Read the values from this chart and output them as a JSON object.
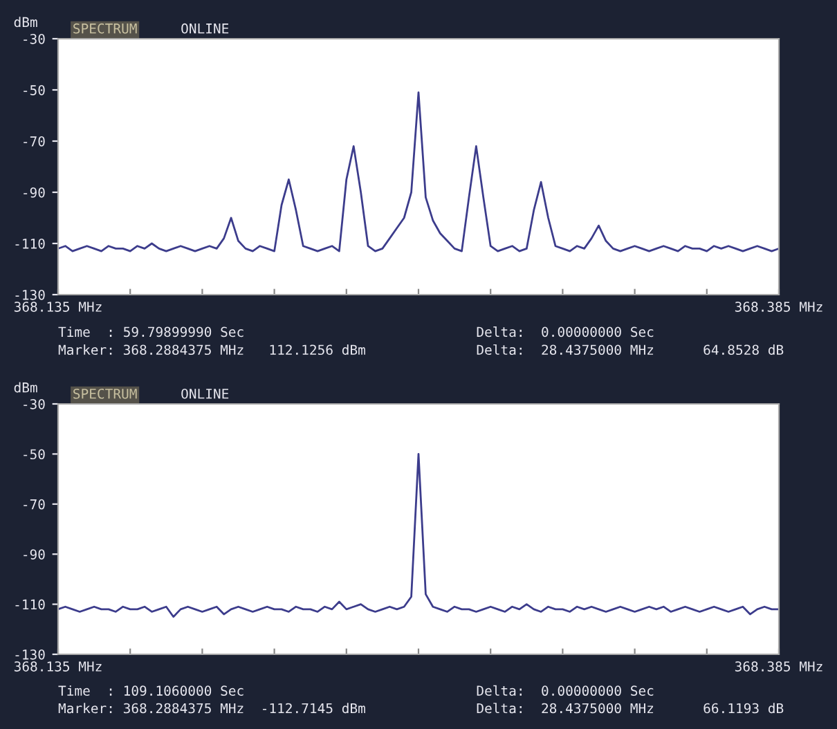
{
  "chart_data": [
    {
      "type": "line",
      "title": "SPECTRUM",
      "subtitle": "ONLINE",
      "ylabel": "dBm",
      "xlim": [
        368.135,
        368.385
      ],
      "ylim": [
        -130,
        -30
      ],
      "yticks": [
        -30,
        -50,
        -70,
        -90,
        -110,
        -130
      ],
      "xticks": [
        {
          "value": 368.135,
          "label": "368.135 MHz"
        },
        {
          "value": 368.16,
          "label": null
        },
        {
          "value": 368.185,
          "label": null
        },
        {
          "value": 368.21,
          "label": null
        },
        {
          "value": 368.235,
          "label": null
        },
        {
          "value": 368.26,
          "label": null
        },
        {
          "value": 368.285,
          "label": null
        },
        {
          "value": 368.31,
          "label": null
        },
        {
          "value": 368.335,
          "label": null
        },
        {
          "value": 368.36,
          "label": null
        },
        {
          "value": 368.385,
          "label": "368.385 MHz"
        }
      ],
      "grid": false,
      "annotations": [
        "Time  : 59.79899990 Sec",
        "Marker: 368.2884375 MHz   112.1256 dBm",
        "Delta:  0.00000000 Sec",
        "Delta:  28.4375000 MHz      64.8528 dB"
      ],
      "series": [
        {
          "color": "#3c3c8c",
          "x": [
            368.135,
            368.1375,
            368.14,
            368.1425,
            368.145,
            368.1475,
            368.15,
            368.1525,
            368.155,
            368.1575,
            368.16,
            368.1625,
            368.165,
            368.1675,
            368.17,
            368.1725,
            368.175,
            368.1775,
            368.18,
            368.1825,
            368.185,
            368.1875,
            368.19,
            368.1925,
            368.195,
            368.1975,
            368.2,
            368.2025,
            368.205,
            368.2075,
            368.21,
            368.2125,
            368.215,
            368.2175,
            368.22,
            368.2225,
            368.225,
            368.2275,
            368.23,
            368.2325,
            368.235,
            368.2375,
            368.24,
            368.2425,
            368.245,
            368.2475,
            368.25,
            368.2525,
            368.255,
            368.2575,
            368.26,
            368.2625,
            368.265,
            368.2675,
            368.27,
            368.2725,
            368.275,
            368.2775,
            368.28,
            368.2825,
            368.285,
            368.2875,
            368.29,
            368.2925,
            368.295,
            368.2975,
            368.3,
            368.3025,
            368.305,
            368.3075,
            368.31,
            368.3125,
            368.315,
            368.3175,
            368.32,
            368.3225,
            368.325,
            368.3275,
            368.33,
            368.3325,
            368.335,
            368.3375,
            368.34,
            368.3425,
            368.345,
            368.3475,
            368.35,
            368.3525,
            368.355,
            368.3575,
            368.36,
            368.3625,
            368.365,
            368.3675,
            368.37,
            368.3725,
            368.375,
            368.3775,
            368.38,
            368.3825,
            368.385
          ],
          "values": [
            -112,
            -111,
            -113,
            -112,
            -111,
            -112,
            -113,
            -111,
            -112,
            -112,
            -113,
            -111,
            -112,
            -110,
            -112,
            -113,
            -112,
            -111,
            -112,
            -113,
            -112,
            -111,
            -112,
            -108,
            -100,
            -109,
            -112,
            -113,
            -111,
            -112,
            -113,
            -95,
            -85,
            -97,
            -111,
            -112,
            -113,
            -112,
            -111,
            -113,
            -85,
            -72,
            -90,
            -111,
            -113,
            -112,
            -108,
            -104,
            -100,
            -90,
            -51,
            -92,
            -101,
            -106,
            -109,
            -112,
            -113,
            -92,
            -72,
            -92,
            -111,
            -113,
            -112,
            -111,
            -113,
            -112,
            -97,
            -86,
            -100,
            -111,
            -112,
            -113,
            -111,
            -112,
            -108,
            -103,
            -109,
            -112,
            -113,
            -112,
            -111,
            -112,
            -113,
            -112,
            -111,
            -112,
            -113,
            -111,
            -112,
            -112,
            -113,
            -111,
            -112,
            -111,
            -112,
            -113,
            -112,
            -111,
            -112,
            -113,
            -112
          ]
        }
      ]
    },
    {
      "type": "line",
      "title": "SPECTRUM",
      "subtitle": "ONLINE",
      "ylabel": "dBm",
      "xlim": [
        368.135,
        368.385
      ],
      "ylim": [
        -130,
        -30
      ],
      "yticks": [
        -30,
        -50,
        -70,
        -90,
        -110,
        -130
      ],
      "xticks": [
        {
          "value": 368.135,
          "label": "368.135 MHz"
        },
        {
          "value": 368.16,
          "label": null
        },
        {
          "value": 368.185,
          "label": null
        },
        {
          "value": 368.21,
          "label": null
        },
        {
          "value": 368.235,
          "label": null
        },
        {
          "value": 368.26,
          "label": null
        },
        {
          "value": 368.285,
          "label": null
        },
        {
          "value": 368.31,
          "label": null
        },
        {
          "value": 368.335,
          "label": null
        },
        {
          "value": 368.36,
          "label": null
        },
        {
          "value": 368.385,
          "label": "368.385 MHz"
        }
      ],
      "grid": false,
      "annotations": [
        "Time  : 109.1060000 Sec",
        "Marker: 368.2884375 MHz  -112.7145 dBm",
        "Delta:  0.00000000 Sec",
        "Delta:  28.4375000 MHz      66.1193 dB"
      ],
      "series": [
        {
          "color": "#3c3c8c",
          "x": [
            368.135,
            368.1375,
            368.14,
            368.1425,
            368.145,
            368.1475,
            368.15,
            368.1525,
            368.155,
            368.1575,
            368.16,
            368.1625,
            368.165,
            368.1675,
            368.17,
            368.1725,
            368.175,
            368.1775,
            368.18,
            368.1825,
            368.185,
            368.1875,
            368.19,
            368.1925,
            368.195,
            368.1975,
            368.2,
            368.2025,
            368.205,
            368.2075,
            368.21,
            368.2125,
            368.215,
            368.2175,
            368.22,
            368.2225,
            368.225,
            368.2275,
            368.23,
            368.2325,
            368.235,
            368.2375,
            368.24,
            368.2425,
            368.245,
            368.2475,
            368.25,
            368.2525,
            368.255,
            368.2575,
            368.26,
            368.2625,
            368.265,
            368.2675,
            368.27,
            368.2725,
            368.275,
            368.2775,
            368.28,
            368.2825,
            368.285,
            368.2875,
            368.29,
            368.2925,
            368.295,
            368.2975,
            368.3,
            368.3025,
            368.305,
            368.3075,
            368.31,
            368.3125,
            368.315,
            368.3175,
            368.32,
            368.3225,
            368.325,
            368.3275,
            368.33,
            368.3325,
            368.335,
            368.3375,
            368.34,
            368.3425,
            368.345,
            368.3475,
            368.35,
            368.3525,
            368.355,
            368.3575,
            368.36,
            368.3625,
            368.365,
            368.3675,
            368.37,
            368.3725,
            368.375,
            368.3775,
            368.38,
            368.3825,
            368.385
          ],
          "values": [
            -112,
            -111,
            -112,
            -113,
            -112,
            -111,
            -112,
            -112,
            -113,
            -111,
            -112,
            -112,
            -111,
            -113,
            -112,
            -111,
            -115,
            -112,
            -111,
            -112,
            -113,
            -112,
            -111,
            -114,
            -112,
            -111,
            -112,
            -113,
            -112,
            -111,
            -112,
            -112,
            -113,
            -111,
            -112,
            -112,
            -113,
            -111,
            -112,
            -109,
            -112,
            -111,
            -110,
            -112,
            -113,
            -112,
            -111,
            -112,
            -111,
            -107,
            -50,
            -106,
            -111,
            -112,
            -113,
            -111,
            -112,
            -112,
            -113,
            -112,
            -111,
            -112,
            -113,
            -111,
            -112,
            -110,
            -112,
            -113,
            -111,
            -112,
            -112,
            -113,
            -111,
            -112,
            -111,
            -112,
            -113,
            -112,
            -111,
            -112,
            -113,
            -112,
            -111,
            -112,
            -111,
            -113,
            -112,
            -111,
            -112,
            -113,
            -112,
            -111,
            -112,
            -113,
            -112,
            -111,
            -114,
            -112,
            -111,
            -112,
            -112
          ]
        }
      ]
    }
  ]
}
